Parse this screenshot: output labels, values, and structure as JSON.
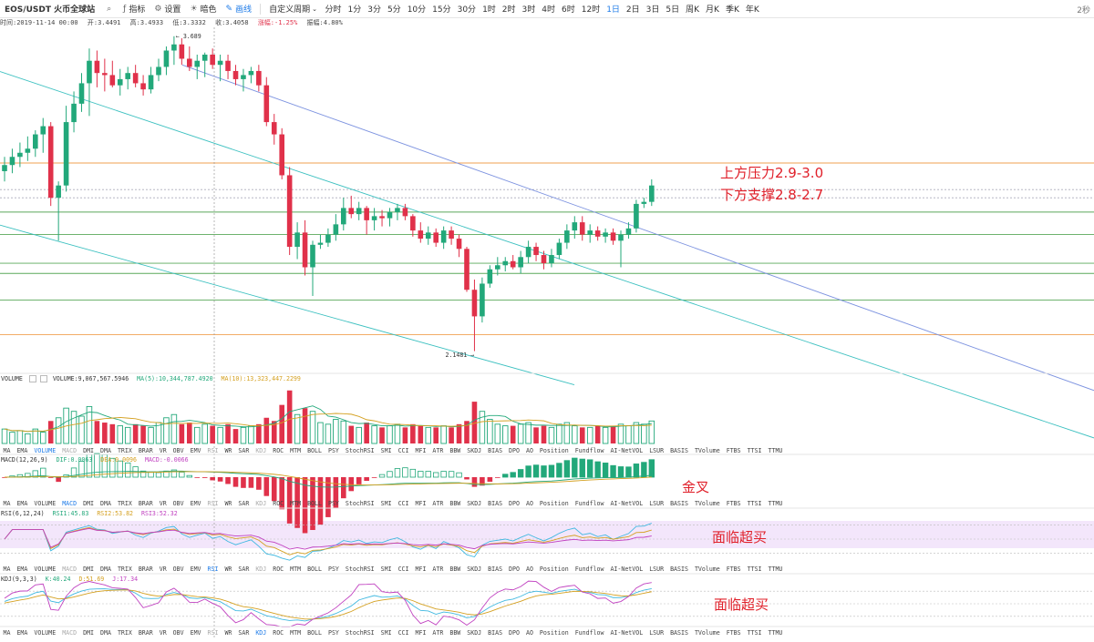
{
  "toolbar": {
    "symbol": "EOS/USDT 火币全球站",
    "buttons": [
      "指标",
      "设置",
      "暗色",
      "画线"
    ],
    "custom_period": "自定义周期",
    "periods": [
      "分时",
      "1分",
      "3分",
      "5分",
      "10分",
      "15分",
      "30分",
      "1时",
      "2时",
      "3时",
      "4时",
      "6时",
      "12时",
      "1日",
      "2日",
      "3日",
      "5日",
      "周K",
      "月K",
      "季K",
      "年K"
    ],
    "active_period": "1日",
    "right_text": "2秒"
  },
  "infobar": {
    "time": "时间:2019-11-14 00:00",
    "open": "开:3.4491",
    "high": "高:3.4933",
    "low": "低:3.3332",
    "close": "收:3.4058",
    "change": "涨幅:-1.25%",
    "amplitude": "振幅:4.80%"
  },
  "annotations": {
    "resistance": "上方压力2.9-3.0",
    "support": "下方支撑2.8-2.7",
    "golden_cross": "金叉",
    "overbought_rsi": "面临超买",
    "overbought_kdj": "面临超买"
  },
  "price_labels": {
    "high": "3.689",
    "low": "2.1481"
  },
  "volume_panel": {
    "name": "VOLUME",
    "value": "VOLUME:9,067,567.5946",
    "ma5": "MA(5):10,344,787.4920",
    "ma10": "MA(10):13,323,447.2299"
  },
  "macd_panel": {
    "name": "MACD(12,26,9)",
    "dif": "DIF:0.0063",
    "dea": "DEA:0.0096",
    "macd": "MACD:-0.0066"
  },
  "rsi_panel": {
    "name": "RSI(6,12,24)",
    "rsi1": "RSI1:45.83",
    "rsi2": "RSI2:53.82",
    "rsi3": "RSI3:52.32"
  },
  "kdj_panel": {
    "name": "KDJ(9,3,3)",
    "k": "K:40.24",
    "d": "D:51.69",
    "j": "J:17.34"
  },
  "indicator_tabs": [
    "MA",
    "EMA",
    "VOLUME",
    "MACD",
    "DMI",
    "DMA",
    "TRIX",
    "BRAR",
    "VR",
    "OBV",
    "EMV",
    "RSI",
    "WR",
    "SAR",
    "KDJ",
    "ROC",
    "MTM",
    "BOLL",
    "PSY",
    "StochRSI",
    "SMI",
    "CCI",
    "MFI",
    "ATR",
    "BBW",
    "SKDJ",
    "BIAS",
    "DPO",
    "AO",
    "Position",
    "Fundflow",
    "AI-NetVOL",
    "LSUR",
    "BASIS",
    "TVolume",
    "FTBS",
    "TTSI",
    "TTMU"
  ],
  "colors": {
    "up": "#22a87a",
    "down": "#e0314a",
    "accent": "#1e7be8",
    "annotation": "#e0202a"
  },
  "chart_data": {
    "type": "candlestick",
    "title": "EOS/USDT",
    "price_high": 3.689,
    "price_low": 2.1481,
    "candles": [
      {
        "o": 3.03,
        "h": 3.1,
        "l": 2.98,
        "c": 3.06
      },
      {
        "o": 3.06,
        "h": 3.14,
        "l": 3.02,
        "c": 3.1
      },
      {
        "o": 3.1,
        "h": 3.17,
        "l": 3.05,
        "c": 3.12
      },
      {
        "o": 3.12,
        "h": 3.2,
        "l": 3.08,
        "c": 3.14
      },
      {
        "o": 3.14,
        "h": 3.23,
        "l": 3.1,
        "c": 3.21
      },
      {
        "o": 3.21,
        "h": 3.29,
        "l": 3.12,
        "c": 3.25
      },
      {
        "o": 3.25,
        "h": 3.27,
        "l": 2.86,
        "c": 2.9
      },
      {
        "o": 2.9,
        "h": 2.98,
        "l": 2.69,
        "c": 2.96
      },
      {
        "o": 2.96,
        "h": 3.35,
        "l": 2.93,
        "c": 3.27
      },
      {
        "o": 3.27,
        "h": 3.42,
        "l": 3.22,
        "c": 3.36
      },
      {
        "o": 3.36,
        "h": 3.51,
        "l": 3.32,
        "c": 3.46
      },
      {
        "o": 3.46,
        "h": 3.63,
        "l": 3.3,
        "c": 3.57
      },
      {
        "o": 3.57,
        "h": 3.62,
        "l": 3.44,
        "c": 3.51
      },
      {
        "o": 3.51,
        "h": 3.58,
        "l": 3.42,
        "c": 3.5
      },
      {
        "o": 3.5,
        "h": 3.57,
        "l": 3.44,
        "c": 3.45
      },
      {
        "o": 3.45,
        "h": 3.53,
        "l": 3.4,
        "c": 3.48
      },
      {
        "o": 3.48,
        "h": 3.54,
        "l": 3.43,
        "c": 3.51
      },
      {
        "o": 3.51,
        "h": 3.55,
        "l": 3.44,
        "c": 3.46
      },
      {
        "o": 3.46,
        "h": 3.5,
        "l": 3.4,
        "c": 3.43
      },
      {
        "o": 3.43,
        "h": 3.54,
        "l": 3.41,
        "c": 3.5
      },
      {
        "o": 3.5,
        "h": 3.58,
        "l": 3.47,
        "c": 3.54
      },
      {
        "o": 3.54,
        "h": 3.64,
        "l": 3.5,
        "c": 3.62
      },
      {
        "o": 3.62,
        "h": 3.69,
        "l": 3.55,
        "c": 3.65
      },
      {
        "o": 3.65,
        "h": 3.68,
        "l": 3.55,
        "c": 3.58
      },
      {
        "o": 3.58,
        "h": 3.64,
        "l": 3.52,
        "c": 3.54
      },
      {
        "o": 3.54,
        "h": 3.6,
        "l": 3.48,
        "c": 3.57
      },
      {
        "o": 3.57,
        "h": 3.61,
        "l": 3.49,
        "c": 3.6
      },
      {
        "o": 3.6,
        "h": 3.63,
        "l": 3.53,
        "c": 3.55
      },
      {
        "o": 3.55,
        "h": 3.6,
        "l": 3.47,
        "c": 3.57
      },
      {
        "o": 3.57,
        "h": 3.6,
        "l": 3.48,
        "c": 3.52
      },
      {
        "o": 3.52,
        "h": 3.55,
        "l": 3.45,
        "c": 3.48
      },
      {
        "o": 3.48,
        "h": 3.53,
        "l": 3.42,
        "c": 3.5
      },
      {
        "o": 3.5,
        "h": 3.54,
        "l": 3.46,
        "c": 3.52
      },
      {
        "o": 3.52,
        "h": 3.55,
        "l": 3.42,
        "c": 3.45
      },
      {
        "o": 3.45,
        "h": 3.49,
        "l": 3.25,
        "c": 3.27
      },
      {
        "o": 3.27,
        "h": 3.31,
        "l": 3.16,
        "c": 3.21
      },
      {
        "o": 3.21,
        "h": 3.24,
        "l": 2.99,
        "c": 3.01
      },
      {
        "o": 3.01,
        "h": 3.05,
        "l": 2.62,
        "c": 2.66
      },
      {
        "o": 2.66,
        "h": 2.78,
        "l": 2.6,
        "c": 2.73
      },
      {
        "o": 2.73,
        "h": 2.79,
        "l": 2.52,
        "c": 2.56
      },
      {
        "o": 2.56,
        "h": 2.69,
        "l": 2.42,
        "c": 2.67
      },
      {
        "o": 2.67,
        "h": 2.72,
        "l": 2.65,
        "c": 2.68
      },
      {
        "o": 2.68,
        "h": 2.75,
        "l": 2.66,
        "c": 2.72
      },
      {
        "o": 2.72,
        "h": 2.82,
        "l": 2.69,
        "c": 2.77
      },
      {
        "o": 2.77,
        "h": 2.9,
        "l": 2.74,
        "c": 2.85
      },
      {
        "o": 2.85,
        "h": 2.91,
        "l": 2.8,
        "c": 2.82
      },
      {
        "o": 2.82,
        "h": 2.88,
        "l": 2.79,
        "c": 2.85
      },
      {
        "o": 2.85,
        "h": 2.86,
        "l": 2.72,
        "c": 2.79
      },
      {
        "o": 2.79,
        "h": 2.85,
        "l": 2.74,
        "c": 2.81
      },
      {
        "o": 2.81,
        "h": 2.84,
        "l": 2.76,
        "c": 2.8
      },
      {
        "o": 2.8,
        "h": 2.85,
        "l": 2.76,
        "c": 2.83
      },
      {
        "o": 2.83,
        "h": 2.87,
        "l": 2.79,
        "c": 2.85
      },
      {
        "o": 2.85,
        "h": 2.87,
        "l": 2.79,
        "c": 2.81
      },
      {
        "o": 2.81,
        "h": 2.82,
        "l": 2.71,
        "c": 2.74
      },
      {
        "o": 2.74,
        "h": 2.78,
        "l": 2.68,
        "c": 2.7
      },
      {
        "o": 2.7,
        "h": 2.76,
        "l": 2.67,
        "c": 2.73
      },
      {
        "o": 2.73,
        "h": 2.75,
        "l": 2.66,
        "c": 2.68
      },
      {
        "o": 2.68,
        "h": 2.76,
        "l": 2.65,
        "c": 2.74
      },
      {
        "o": 2.74,
        "h": 2.76,
        "l": 2.67,
        "c": 2.7
      },
      {
        "o": 2.7,
        "h": 2.72,
        "l": 2.61,
        "c": 2.65
      },
      {
        "o": 2.65,
        "h": 2.66,
        "l": 2.44,
        "c": 2.45
      },
      {
        "o": 2.45,
        "h": 2.5,
        "l": 2.15,
        "c": 2.32
      },
      {
        "o": 2.32,
        "h": 2.51,
        "l": 2.29,
        "c": 2.48
      },
      {
        "o": 2.48,
        "h": 2.57,
        "l": 2.46,
        "c": 2.55
      },
      {
        "o": 2.55,
        "h": 2.61,
        "l": 2.52,
        "c": 2.57
      },
      {
        "o": 2.57,
        "h": 2.61,
        "l": 2.54,
        "c": 2.59
      },
      {
        "o": 2.59,
        "h": 2.62,
        "l": 2.55,
        "c": 2.56
      },
      {
        "o": 2.56,
        "h": 2.64,
        "l": 2.53,
        "c": 2.61
      },
      {
        "o": 2.61,
        "h": 2.69,
        "l": 2.58,
        "c": 2.66
      },
      {
        "o": 2.66,
        "h": 2.68,
        "l": 2.59,
        "c": 2.62
      },
      {
        "o": 2.62,
        "h": 2.64,
        "l": 2.55,
        "c": 2.58
      },
      {
        "o": 2.58,
        "h": 2.65,
        "l": 2.56,
        "c": 2.62
      },
      {
        "o": 2.62,
        "h": 2.7,
        "l": 2.6,
        "c": 2.68
      },
      {
        "o": 2.68,
        "h": 2.77,
        "l": 2.65,
        "c": 2.74
      },
      {
        "o": 2.74,
        "h": 2.81,
        "l": 2.7,
        "c": 2.78
      },
      {
        "o": 2.78,
        "h": 2.81,
        "l": 2.69,
        "c": 2.72
      },
      {
        "o": 2.72,
        "h": 2.77,
        "l": 2.68,
        "c": 2.74
      },
      {
        "o": 2.74,
        "h": 2.76,
        "l": 2.69,
        "c": 2.71
      },
      {
        "o": 2.71,
        "h": 2.75,
        "l": 2.68,
        "c": 2.73
      },
      {
        "o": 2.73,
        "h": 2.75,
        "l": 2.67,
        "c": 2.69
      },
      {
        "o": 2.69,
        "h": 2.74,
        "l": 2.56,
        "c": 2.72
      },
      {
        "o": 2.72,
        "h": 2.78,
        "l": 2.7,
        "c": 2.75
      },
      {
        "o": 2.75,
        "h": 2.89,
        "l": 2.73,
        "c": 2.87
      },
      {
        "o": 2.87,
        "h": 2.9,
        "l": 2.85,
        "c": 2.88
      },
      {
        "o": 2.88,
        "h": 2.99,
        "l": 2.86,
        "c": 2.96
      }
    ],
    "volume": [
      0.9,
      0.7,
      0.8,
      0.6,
      0.9,
      0.7,
      1.4,
      1.6,
      2.2,
      2.0,
      1.7,
      2.3,
      1.4,
      1.3,
      1.2,
      1.1,
      1.0,
      1.2,
      1.1,
      1.0,
      1.3,
      1.6,
      1.8,
      1.2,
      1.3,
      1.0,
      1.2,
      1.1,
      1.0,
      1.2,
      0.9,
      1.0,
      1.1,
      1.2,
      1.6,
      1.4,
      2.4,
      3.3,
      1.8,
      2.2,
      2.0,
      1.3,
      1.2,
      1.5,
      1.4,
      1.1,
      1.0,
      1.3,
      1.1,
      1.0,
      1.1,
      1.2,
      1.0,
      1.2,
      1.1,
      1.0,
      1.0,
      1.1,
      1.0,
      1.2,
      1.4,
      2.6,
      2.0,
      1.5,
      1.2,
      1.1,
      1.1,
      1.2,
      1.3,
      1.0,
      1.1,
      1.0,
      1.2,
      1.3,
      1.1,
      1.0,
      1.0,
      1.1,
      1.0,
      1.1,
      1.2,
      1.1,
      1.3,
      1.2,
      1.4
    ],
    "trendlines": [
      {
        "name": "upper-falling",
        "from": [
          0,
          3.86
        ],
        "to": [
          84,
          2.73
        ]
      },
      {
        "name": "channel-mid",
        "from": [
          0,
          3.51
        ],
        "to": [
          84,
          2.45
        ]
      },
      {
        "name": "channel-low",
        "from": [
          0,
          2.76
        ],
        "to": [
          84,
          1.88
        ]
      }
    ],
    "horizontal_levels": [
      {
        "price": 3.07,
        "color": "#f0a050"
      },
      {
        "price": 2.94,
        "color": "#aab",
        "dashed": true
      },
      {
        "price": 2.9,
        "color": "#aab",
        "dashed": true
      },
      {
        "price": 2.83,
        "color": "#5aa85a"
      },
      {
        "price": 2.72,
        "color": "#5aa85a"
      },
      {
        "price": 2.58,
        "color": "#5aa85a"
      },
      {
        "price": 2.53,
        "color": "#5aa85a"
      },
      {
        "price": 2.4,
        "color": "#5aa85a"
      },
      {
        "price": 2.23,
        "color": "#f0a050"
      }
    ]
  }
}
